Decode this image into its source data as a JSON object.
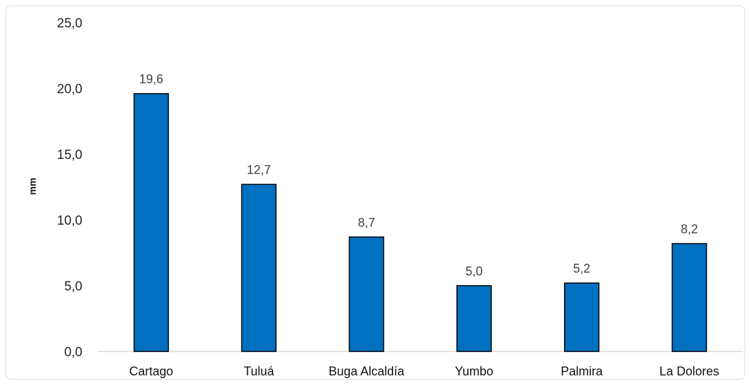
{
  "chart_data": {
    "type": "bar",
    "title": "",
    "xlabel": "",
    "ylabel": "mm",
    "categories": [
      "Cartago",
      "Tuluá",
      "Buga Alcaldía",
      "Yumbo",
      "Palmira",
      "La Dolores"
    ],
    "values": [
      19.6,
      12.7,
      8.7,
      5.0,
      5.2,
      8.2
    ],
    "value_labels": [
      "19,6",
      "12,7",
      "8,7",
      "5,0",
      "5,2",
      "8,2"
    ],
    "ylim": [
      0,
      25
    ],
    "yticks": [
      0,
      5,
      10,
      15,
      20,
      25
    ],
    "ytick_labels": [
      "0,0",
      "5,0",
      "10,0",
      "15,0",
      "20,0",
      "25,0"
    ],
    "grid": false,
    "legend": "none",
    "bar_color": "#0070c0",
    "bar_edge_color": "#000000"
  }
}
